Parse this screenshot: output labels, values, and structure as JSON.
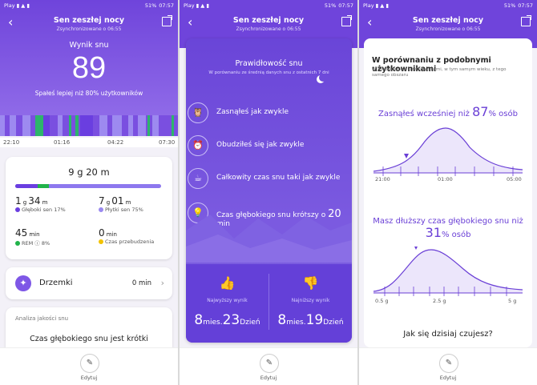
{
  "status": {
    "left_icons": [
      "Play",
      "NFC",
      "4G",
      "LTE",
      "Y"
    ],
    "battery": "51%",
    "time": "07:57"
  },
  "header": {
    "title": "Sen zeszłej nocy",
    "subtitle": "Zsynchronizowane o 06:55"
  },
  "panel1": {
    "score_label": "Wynik snu",
    "score": "89",
    "score_desc": "Spałeś lepiej niż 80% użytkowników",
    "timeline_ticks": [
      "22:10",
      "01:16",
      "04:22",
      "07:30"
    ],
    "duration": {
      "h": "9",
      "h_unit": "g",
      "m": "20",
      "m_unit": "m"
    },
    "stats": [
      {
        "val": "1",
        "unit1": "g",
        "val2": "34",
        "unit2": "m",
        "label": "Głęboki sen 17%",
        "color": "#6a3ee0"
      },
      {
        "val": "7",
        "unit1": "g",
        "val2": "01",
        "unit2": "m",
        "label": "Płytki sen 75%",
        "color": "#9a8af0"
      },
      {
        "val": "45",
        "unit1": "min",
        "val2": "",
        "unit2": "",
        "label": "REM ⓘ 8%",
        "color": "#21b34a"
      },
      {
        "val": "0",
        "unit1": "min",
        "val2": "",
        "unit2": "",
        "label": "Czas przebudzenia",
        "color": "#f2c200"
      }
    ],
    "nap_label": "Drzemki",
    "nap_value": "0 min",
    "analysis_header": "Analiza jakości snu",
    "analysis_text": "Czas głębokiego snu jest krótki",
    "edit_label": "Edytuj"
  },
  "panel2": {
    "title": "Prawidłowość snu",
    "subtitle": "W porównaniu ze średnią danych snu z ostatnich 7 dni",
    "items": [
      {
        "icon": "owl-icon",
        "glyph": "🦉",
        "text": "Zasnąłeś jak zwykle",
        "bold": ""
      },
      {
        "icon": "alarm-icon",
        "glyph": "⏰",
        "text": "Obudziłeś się jak zwykle",
        "bold": ""
      },
      {
        "icon": "cup-icon",
        "glyph": "☕",
        "text": "Całkowity czas snu taki jak zwykle",
        "bold": ""
      },
      {
        "icon": "lamp-icon",
        "glyph": "💡",
        "text": "Czas głębokiego snu krótszy o ",
        "bold": "20",
        "after": " min"
      }
    ],
    "best_label": "Najwyższy wynik",
    "best_m": "8",
    "best_m_unit": "mies.",
    "best_d": "23",
    "best_d_unit": "Dzień",
    "worst_label": "Najniższy wynik",
    "worst_m": "8",
    "worst_m_unit": "mies.",
    "worst_d": "19",
    "worst_d_unit": "Dzień"
  },
  "panel3": {
    "title": "W porównaniu z podobnymi użytkownikami",
    "subtitle": "W porównaniu z użytkownikami, w tym samym wieku, z tego samego obszaru",
    "q1_pre": "Zasnąłeś wcześniej niż ",
    "q1_val": "87",
    "q1_post": "% osób",
    "q1_axis": [
      "21:00",
      "01:00",
      "05:00"
    ],
    "q2_pre": "Masz dłuższy czas głębokiego snu niż ",
    "q2_val": "31",
    "q2_post": "% osób",
    "q2_axis": [
      "0.5 g",
      "2.5 g",
      "5 g"
    ],
    "feel": "Jak się dzisiaj czujesz?"
  },
  "colors": {
    "purple": "#6f44db",
    "green": "#21b34a",
    "light_purple": "#9a8af0"
  }
}
